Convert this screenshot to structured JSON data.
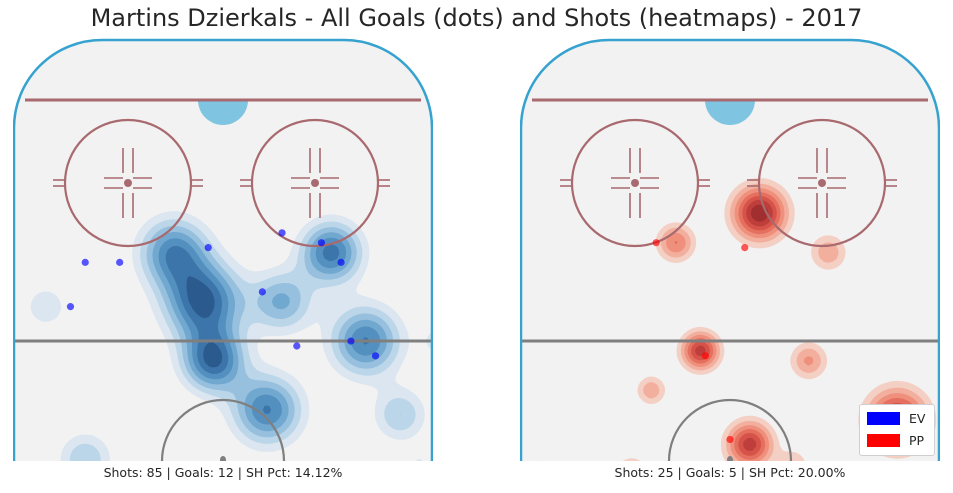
{
  "title": "Martins Dzierkals - All Goals (dots) and Shots (heatmaps) - 2017",
  "colors": {
    "background": "#f2f2f2",
    "boards": "#35a2cf",
    "goal_line": "#a86a6f",
    "faceoff": "#a86a6f",
    "center_line": "#7f7f7f",
    "goal_crease": "#7fc4e0",
    "ev": "#0000ff",
    "pp": "#ff0000"
  },
  "legend": [
    {
      "label": "EV",
      "color": "#0000ff"
    },
    {
      "label": "PP",
      "color": "#ff0000"
    }
  ],
  "chart_data": [
    {
      "type": "scatter",
      "panel": "ev",
      "caption": "Shots: 85 | Goals: 12 | SH Pct: 14.12%",
      "shots": 85,
      "goals": 12,
      "sh_pct": 14.12,
      "heatmap_color": "blue",
      "goals_points": [
        {
          "x": -28,
          "y": 56
        },
        {
          "x": -21,
          "y": 56
        },
        {
          "x": -31,
          "y": 47
        },
        {
          "x": -3,
          "y": 59
        },
        {
          "x": 12,
          "y": 62
        },
        {
          "x": 20,
          "y": 60
        },
        {
          "x": 24,
          "y": 56
        },
        {
          "x": 8,
          "y": 50
        },
        {
          "x": 15,
          "y": 39
        },
        {
          "x": 26,
          "y": 40
        },
        {
          "x": 31,
          "y": 37
        },
        {
          "x": 44,
          "y": 24
        }
      ],
      "heatmap_clusters": [
        {
          "x": -4,
          "y": 48,
          "spread": 10,
          "weight": 1.0
        },
        {
          "x": -10,
          "y": 58,
          "spread": 9,
          "weight": 0.8
        },
        {
          "x": -2,
          "y": 36,
          "spread": 8,
          "weight": 0.95
        },
        {
          "x": 9,
          "y": 26,
          "spread": 9,
          "weight": 0.85
        },
        {
          "x": 22,
          "y": 58,
          "spread": 8,
          "weight": 0.9
        },
        {
          "x": 29,
          "y": 40,
          "spread": 9,
          "weight": 0.85
        },
        {
          "x": 12,
          "y": 48,
          "spread": 8,
          "weight": 0.6
        },
        {
          "x": -28,
          "y": 16,
          "spread": 7,
          "weight": 0.45
        },
        {
          "x": 36,
          "y": 25,
          "spread": 7,
          "weight": 0.45
        },
        {
          "x": 44,
          "y": 40,
          "spread": 5,
          "weight": 0.25
        },
        {
          "x": -36,
          "y": 47,
          "spread": 6,
          "weight": 0.3
        },
        {
          "x": -12,
          "y": 4,
          "spread": 5,
          "weight": 0.25
        },
        {
          "x": 6,
          "y": 0,
          "spread": 4,
          "weight": 0.2
        },
        {
          "x": -48,
          "y": 20,
          "spread": 4,
          "weight": 0.2
        },
        {
          "x": 40,
          "y": 15,
          "spread": 4,
          "weight": 0.2
        }
      ]
    },
    {
      "type": "scatter",
      "panel": "pp",
      "caption": "Shots: 25 | Goals: 5 | SH Pct: 20.00%",
      "shots": 25,
      "goals": 5,
      "sh_pct": 20.0,
      "heatmap_color": "red",
      "goals_points": [
        {
          "x": -15,
          "y": 60
        },
        {
          "x": 3,
          "y": 59
        },
        {
          "x": -5,
          "y": 37
        },
        {
          "x": 0,
          "y": 20
        },
        {
          "x": 38,
          "y": 23
        }
      ],
      "heatmap_clusters": [
        {
          "x": 6,
          "y": 66,
          "spread": 7,
          "weight": 1.0
        },
        {
          "x": -11,
          "y": 60,
          "spread": 5,
          "weight": 0.55
        },
        {
          "x": -6,
          "y": 38,
          "spread": 5,
          "weight": 0.85
        },
        {
          "x": 4,
          "y": 19,
          "spread": 6,
          "weight": 0.85
        },
        {
          "x": 34,
          "y": 24,
          "spread": 8,
          "weight": 0.9
        },
        {
          "x": 16,
          "y": 36,
          "spread": 5,
          "weight": 0.45
        },
        {
          "x": -16,
          "y": 30,
          "spread": 4,
          "weight": 0.4
        },
        {
          "x": 20,
          "y": 58,
          "spread": 5,
          "weight": 0.4
        },
        {
          "x": -20,
          "y": 13,
          "spread": 5,
          "weight": 0.35
        },
        {
          "x": -4,
          "y": 8,
          "spread": 6,
          "weight": 0.35
        },
        {
          "x": 13,
          "y": 15,
          "spread": 4,
          "weight": 0.3
        },
        {
          "x": -38,
          "y": 14,
          "spread": 3,
          "weight": 0.3
        }
      ]
    }
  ]
}
